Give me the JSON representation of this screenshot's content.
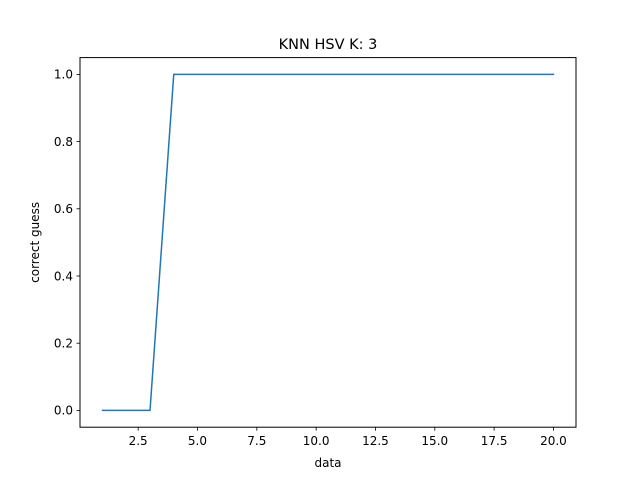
{
  "chart_data": {
    "type": "line",
    "title": "KNN HSV K: 3",
    "xlabel": "data",
    "ylabel": "correct guess",
    "x": [
      1,
      2,
      3,
      4,
      5,
      6,
      7,
      8,
      9,
      10,
      11,
      12,
      13,
      14,
      15,
      16,
      17,
      18,
      19,
      20
    ],
    "series": [
      {
        "values": [
          0,
          0,
          0,
          1,
          1,
          1,
          1,
          1,
          1,
          1,
          1,
          1,
          1,
          1,
          1,
          1,
          1,
          1,
          1,
          1
        ],
        "color": "#1f77b4"
      }
    ],
    "xlim": [
      0.05,
      20.95
    ],
    "ylim": [
      -0.05,
      1.05
    ],
    "xticks": [
      2.5,
      5.0,
      7.5,
      10.0,
      12.5,
      15.0,
      17.5,
      20.0
    ],
    "xtick_labels": [
      "2.5",
      "5.0",
      "7.5",
      "10.0",
      "12.5",
      "15.0",
      "17.5",
      "20.0"
    ],
    "yticks": [
      0.0,
      0.2,
      0.4,
      0.6,
      0.8,
      1.0
    ],
    "ytick_labels": [
      "0.0",
      "0.2",
      "0.4",
      "0.6",
      "0.8",
      "1.0"
    ],
    "grid": false,
    "legend": "none"
  }
}
